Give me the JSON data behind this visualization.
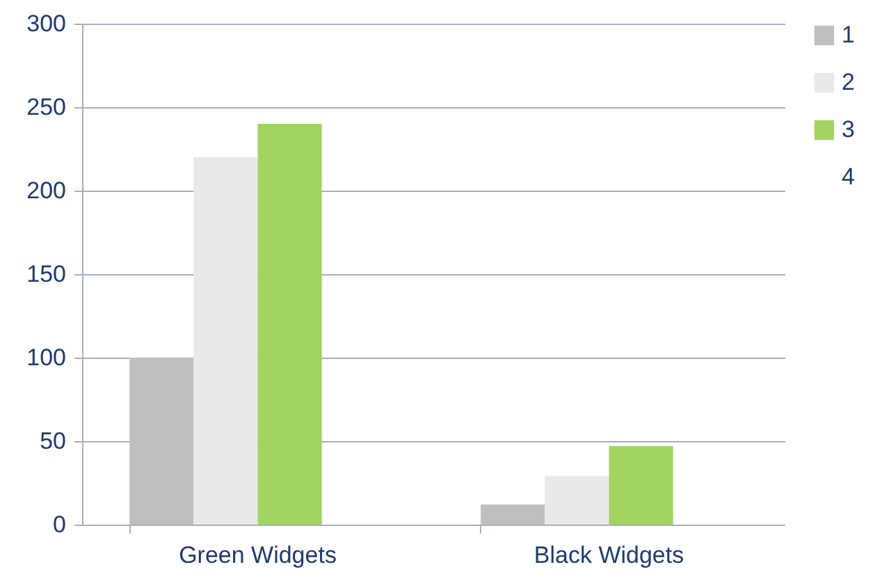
{
  "chart_data": {
    "type": "bar",
    "categories": [
      "Green Widgets",
      "Black Widgets"
    ],
    "series": [
      {
        "name": "1",
        "color": "#bfbfbf",
        "values": [
          100,
          12
        ]
      },
      {
        "name": "2",
        "color": "#e9e9e9",
        "values": [
          220,
          29
        ]
      },
      {
        "name": "3",
        "color": "#a1d461",
        "values": [
          240,
          47
        ]
      },
      {
        "name": "4",
        "values": [
          null,
          null
        ]
      }
    ],
    "ylim": [
      0,
      300
    ],
    "yticks": [
      0,
      50,
      100,
      150,
      200,
      250,
      300
    ],
    "grid": "y",
    "legend": "right"
  }
}
